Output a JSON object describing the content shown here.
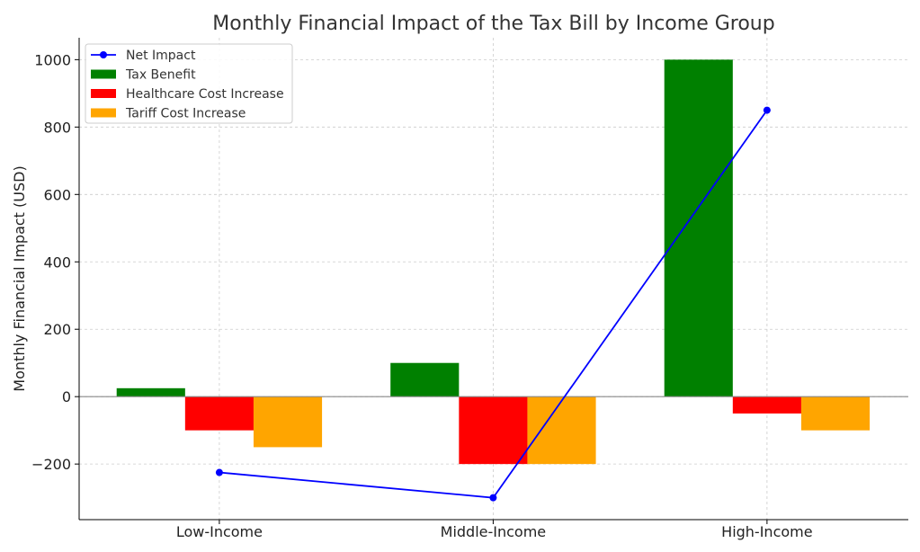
{
  "chart_data": {
    "type": "bar",
    "title": "Monthly Financial Impact of the Tax Bill by Income Group",
    "xlabel": "",
    "ylabel": "Monthly Financial Impact (USD)",
    "categories": [
      "Low-Income",
      "Middle-Income",
      "High-Income"
    ],
    "series": [
      {
        "name": "Tax Benefit",
        "kind": "bar",
        "color": "#008000",
        "offset": -1,
        "values": [
          25,
          100,
          1000
        ]
      },
      {
        "name": "Healthcare Cost Increase",
        "kind": "bar",
        "color": "#ff0000",
        "offset": 0,
        "values": [
          -100,
          -200,
          -50
        ]
      },
      {
        "name": "Tariff Cost Increase",
        "kind": "bar",
        "color": "#ffa500",
        "offset": 1,
        "values": [
          -150,
          -200,
          -100
        ]
      },
      {
        "name": "Net Impact",
        "kind": "line",
        "color": "#0000ff",
        "values": [
          -225,
          -300,
          850
        ]
      }
    ],
    "legend_order": [
      "Net Impact",
      "Tax Benefit",
      "Healthcare Cost Increase",
      "Tariff Cost Increase"
    ],
    "yticks": [
      -200,
      0,
      200,
      400,
      600,
      800,
      1000
    ],
    "ytick_labels": [
      "−200",
      "0",
      "200",
      "400",
      "600",
      "800",
      "1000"
    ],
    "ylim": [
      -365,
      1065
    ],
    "xlim": [
      -0.512,
      2.516
    ],
    "bar_width": 0.25,
    "grid": true,
    "legend_position": "top-left"
  }
}
